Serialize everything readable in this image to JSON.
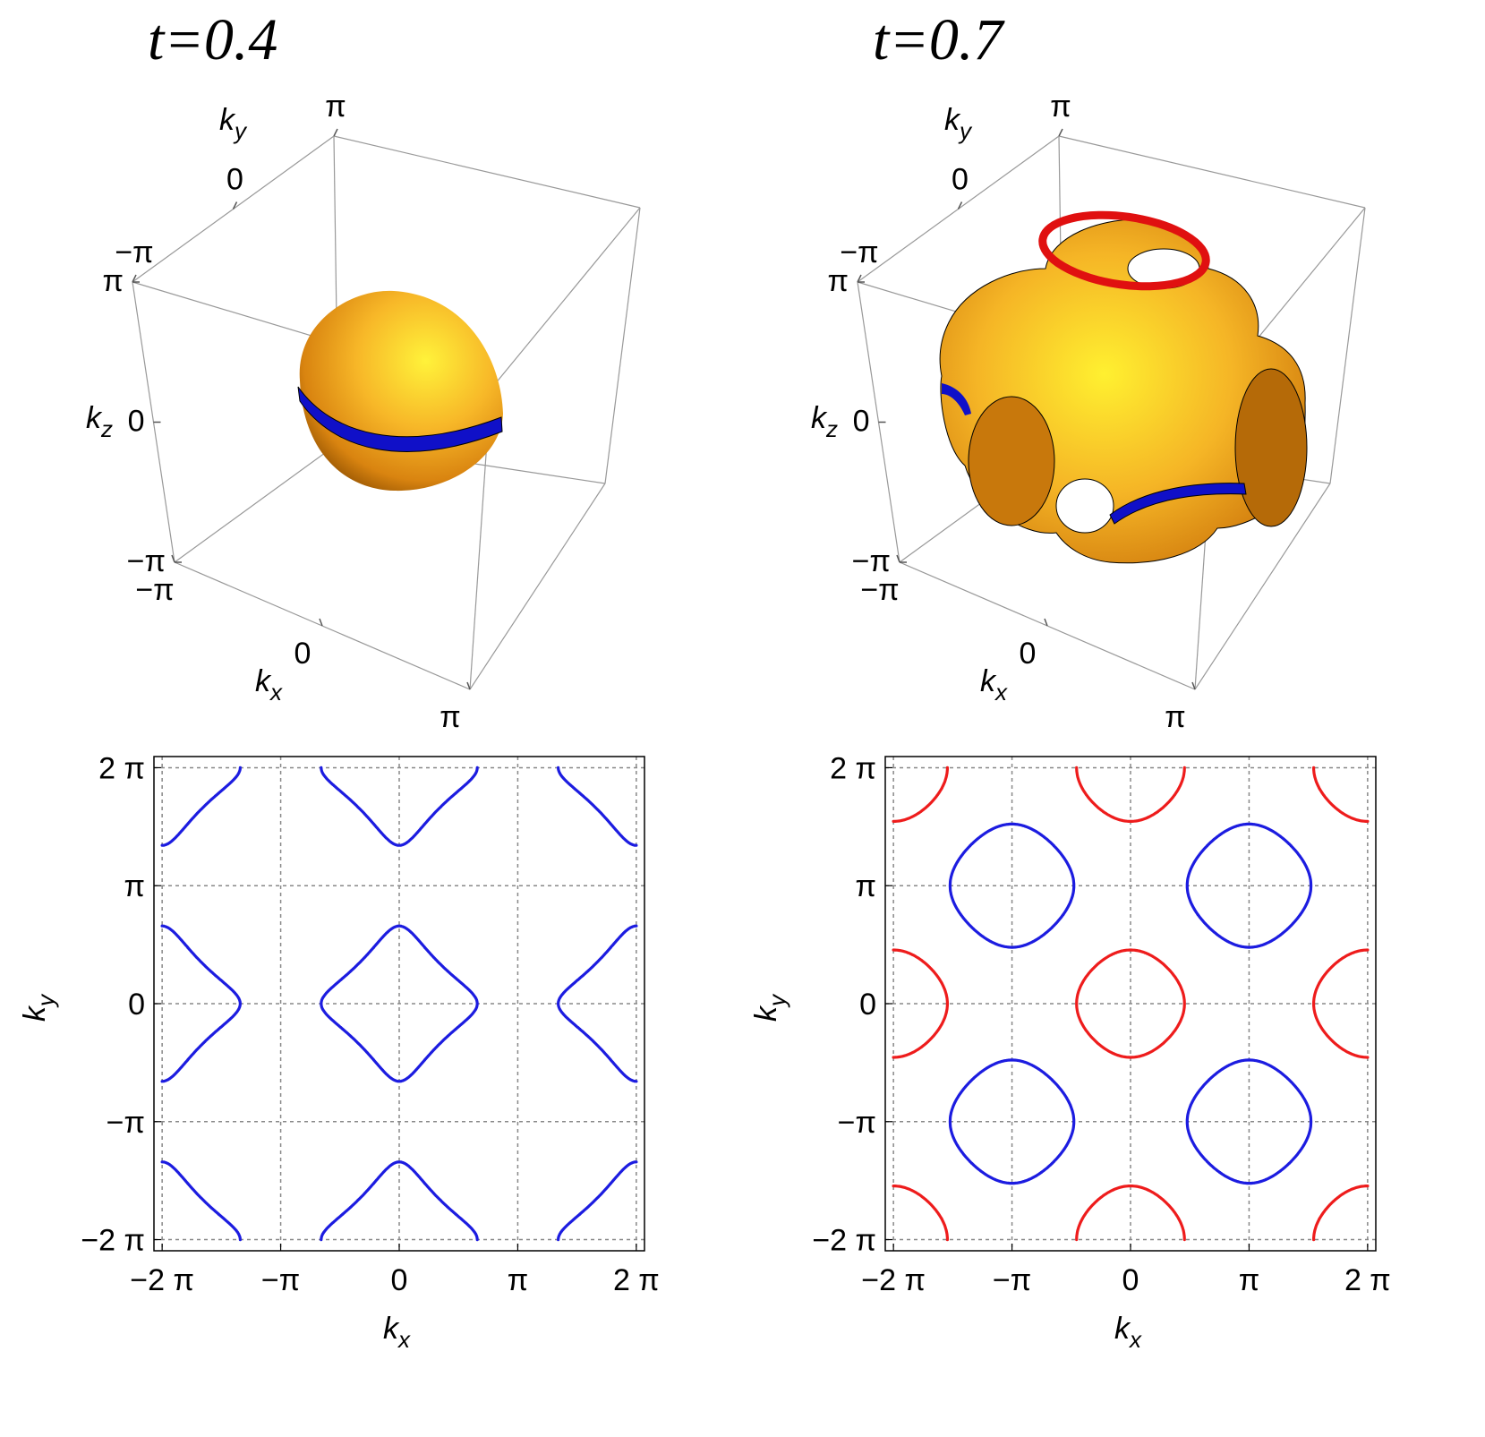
{
  "chart_data": [
    {
      "type": "surface3d",
      "title": "t=0.4",
      "xlabel": [
        "k",
        "x"
      ],
      "ylabel": [
        "k",
        "y"
      ],
      "zlabel": [
        "k",
        "z"
      ],
      "xlim": [
        -3.141593,
        3.141593
      ],
      "ylim": [
        -3.141593,
        3.141593
      ],
      "zlim": [
        -3.141593,
        3.141593
      ],
      "xticks": [
        {
          "value": -3.141593,
          "label": "−π"
        },
        0,
        {
          "value": 3.141593,
          "label": "π"
        }
      ],
      "yticks": [
        {
          "value": -3.141593,
          "label": "−π"
        },
        0,
        {
          "value": 3.141593,
          "label": "π"
        }
      ],
      "zticks": [
        {
          "value": -3.141593,
          "label": "−π"
        },
        0,
        {
          "value": 3.141593,
          "label": "π"
        }
      ]
    },
    {
      "type": "surface3d",
      "title": "t=0.7",
      "xlabel": [
        "k",
        "x"
      ],
      "ylabel": [
        "k",
        "y"
      ],
      "zlabel": [
        "k",
        "z"
      ],
      "xlim": [
        -3.141593,
        3.141593
      ],
      "ylim": [
        -3.141593,
        3.141593
      ],
      "zlim": [
        -3.141593,
        3.141593
      ],
      "xticks": [
        {
          "value": -3.141593,
          "label": "−π"
        },
        0,
        {
          "value": 3.141593,
          "label": "π"
        }
      ],
      "yticks": [
        {
          "value": -3.141593,
          "label": "−π"
        },
        0,
        {
          "value": 3.141593,
          "label": "π"
        }
      ],
      "zticks": [
        {
          "value": -3.141593,
          "label": "−π"
        },
        0,
        {
          "value": 3.141593,
          "label": "π"
        }
      ]
    },
    {
      "type": "contour",
      "xlabel": [
        "k",
        "x"
      ],
      "ylabel": [
        "k",
        "y"
      ],
      "xlim": [
        -6.5,
        6.5
      ],
      "ylim": [
        -6.58,
        6.58
      ],
      "xticks": [
        {
          "value": -6.283185,
          "label": "−2 π"
        },
        {
          "value": -3.141593,
          "label": "−π"
        },
        0,
        {
          "value": 3.141593,
          "label": "π"
        },
        {
          "value": 6.283185,
          "label": "2 π"
        }
      ],
      "yticks": [
        {
          "value": -6.283185,
          "label": "−2 π"
        },
        {
          "value": -3.141593,
          "label": "−π"
        },
        0,
        {
          "value": 3.141593,
          "label": "π"
        },
        {
          "value": 6.283185,
          "label": "2 π"
        }
      ],
      "grid": true,
      "colors": [
        "#1c1ce0"
      ]
    },
    {
      "type": "contour",
      "xlabel": [
        "k",
        "x"
      ],
      "ylabel": [
        "k",
        "y"
      ],
      "xlim": [
        -6.5,
        6.5
      ],
      "ylim": [
        -6.58,
        6.58
      ],
      "xticks": [
        {
          "value": -6.283185,
          "label": "−2 π"
        },
        {
          "value": -3.141593,
          "label": "−π"
        },
        0,
        {
          "value": 3.141593,
          "label": "π"
        },
        {
          "value": 6.283185,
          "label": "2 π"
        }
      ],
      "yticks": [
        {
          "value": -6.283185,
          "label": "−2 π"
        },
        {
          "value": -3.141593,
          "label": "−π"
        },
        0,
        {
          "value": 3.141593,
          "label": "π"
        },
        {
          "value": 6.283185,
          "label": "2 π"
        }
      ],
      "grid": true,
      "colors": [
        "#ee1c1c",
        "#1c1ce0"
      ]
    }
  ]
}
